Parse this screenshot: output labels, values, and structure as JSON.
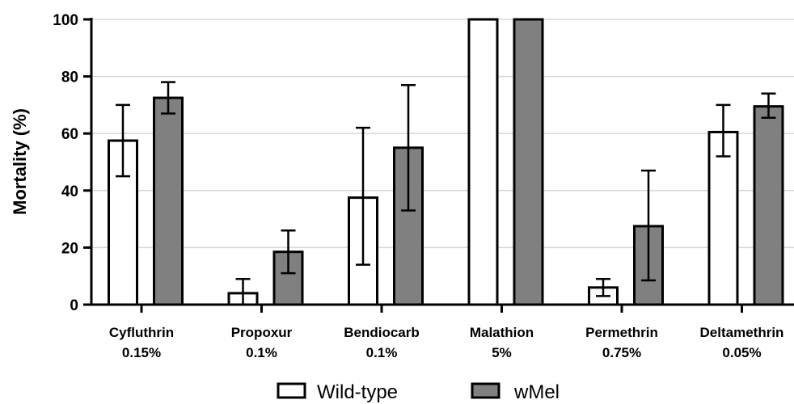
{
  "chart_data": {
    "type": "bar",
    "ylabel": "Mortality (%)",
    "xlabel": "",
    "ylim": [
      0,
      100
    ],
    "yticks": [
      0,
      20,
      40,
      60,
      80,
      100
    ],
    "grid": "horizontal",
    "legend_position": "bottom",
    "categories": [
      [
        "Cyfluthrin",
        "0.15%"
      ],
      [
        "Propoxur",
        "0.1%"
      ],
      [
        "Bendiocarb",
        "0.1%"
      ],
      [
        "Malathion",
        "5%"
      ],
      [
        "Permethrin",
        "0.75%"
      ],
      [
        "Deltamethrin",
        "0.05%"
      ]
    ],
    "series": [
      {
        "name": "Wild-type",
        "color": "#ffffff",
        "values": [
          57.5,
          4,
          37.5,
          100,
          6,
          60.5
        ],
        "error_low": [
          45,
          0,
          14,
          100,
          3,
          52
        ],
        "error_high": [
          70,
          9,
          62,
          100,
          9,
          70
        ]
      },
      {
        "name": "wMel",
        "color": "#808080",
        "values": [
          72.5,
          18.5,
          55,
          100,
          27.5,
          69.5
        ],
        "error_low": [
          67,
          11,
          33,
          100,
          8.5,
          65.5
        ],
        "error_high": [
          78,
          26,
          77,
          100,
          47,
          74
        ]
      }
    ]
  }
}
